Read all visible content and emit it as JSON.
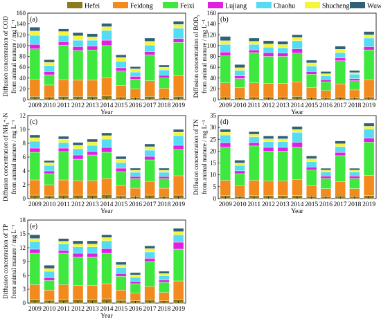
{
  "legend": [
    "Hefei",
    "Feidong",
    "Feixi",
    "Lujiang",
    "Chaohu",
    "Shucheng",
    "Wuwei"
  ],
  "colors": [
    "#8c7a1e",
    "#f28a1e",
    "#3fe83f",
    "#e020e0",
    "#55dcf5",
    "#f5f53a",
    "#2f6277"
  ],
  "years": [
    "2009",
    "2010",
    "2011",
    "2012",
    "2013",
    "2014",
    "2015",
    "2016",
    "2017",
    "2018",
    "2019"
  ],
  "chart_data": [
    {
      "type": "bar",
      "stacked": true,
      "panel": "(a)",
      "ylabel": "Diffusion concentration of COD",
      "ylabel2": "from animal manure / mg L⁻¹",
      "xlabel": "Year",
      "ylim": [
        0,
        160
      ],
      "yticks": [
        0,
        20,
        40,
        60,
        80,
        100,
        120,
        140,
        160
      ],
      "series": [
        {
          "name": "Hefei",
          "values": [
            6,
            5,
            6,
            6,
            6,
            7,
            5,
            4,
            6,
            4,
            6
          ]
        },
        {
          "name": "Feidong",
          "values": [
            32,
            22,
            31,
            30,
            30,
            33,
            21,
            16,
            29,
            17,
            38
          ]
        },
        {
          "name": "Feixi",
          "values": [
            56,
            19,
            64,
            55,
            56,
            60,
            27,
            18,
            48,
            19,
            62
          ]
        },
        {
          "name": "Lujiang",
          "values": [
            8,
            6,
            6,
            7,
            7,
            10,
            6,
            5,
            6,
            5,
            7
          ]
        },
        {
          "name": "Chaohu",
          "values": [
            17,
            11,
            12,
            12,
            11,
            18,
            12,
            8,
            12,
            10,
            19
          ]
        },
        {
          "name": "Shucheng",
          "values": [
            8,
            6,
            7,
            8,
            6,
            7,
            7,
            6,
            7,
            5,
            7
          ]
        },
        {
          "name": "Wuwei",
          "values": [
            7,
            5,
            5,
            6,
            6,
            6,
            5,
            4,
            6,
            4,
            6
          ]
        }
      ]
    },
    {
      "type": "bar",
      "stacked": true,
      "panel": "(b)",
      "ylabel": "Diffusion concentration of BOD₅",
      "ylabel2": "from animal manure / mg L⁻¹",
      "xlabel": "Year",
      "ylim": [
        0,
        160
      ],
      "yticks": [
        0,
        20,
        40,
        60,
        80,
        100,
        120,
        140,
        160
      ],
      "series": [
        {
          "name": "Hefei",
          "values": [
            5,
            4,
            5,
            5,
            5,
            6,
            4,
            3,
            5,
            3,
            5
          ]
        },
        {
          "name": "Feidong",
          "values": [
            26,
            18,
            26,
            25,
            25,
            27,
            18,
            14,
            24,
            15,
            32
          ]
        },
        {
          "name": "Feixi",
          "values": [
            50,
            17,
            56,
            50,
            50,
            53,
            25,
            16,
            43,
            17,
            55
          ]
        },
        {
          "name": "Lujiang",
          "values": [
            7,
            5,
            5,
            7,
            6,
            8,
            5,
            4,
            5,
            4,
            6
          ]
        },
        {
          "name": "Chaohu",
          "values": [
            14,
            10,
            10,
            10,
            10,
            15,
            10,
            7,
            10,
            8,
            16
          ]
        },
        {
          "name": "Shucheng",
          "values": [
            7,
            5,
            6,
            6,
            6,
            6,
            6,
            4,
            6,
            3,
            6
          ]
        },
        {
          "name": "Wuwei",
          "values": [
            8,
            6,
            6,
            6,
            6,
            5,
            5,
            4,
            6,
            4,
            6
          ]
        }
      ]
    },
    {
      "type": "bar",
      "stacked": true,
      "panel": "(c)",
      "ylabel": "Diffusion concentration of NH₃⁺-N",
      "ylabel2": "from animal manure / mg L⁻¹",
      "xlabel": "Year",
      "ylim": [
        0,
        12
      ],
      "yticks": [
        0,
        2,
        4,
        6,
        8,
        10,
        12
      ],
      "series": [
        {
          "name": "Hefei",
          "values": [
            0.5,
            0.4,
            0.5,
            0.5,
            0.5,
            0.6,
            0.4,
            0.3,
            0.5,
            0.3,
            0.5
          ]
        },
        {
          "name": "Feidong",
          "values": [
            2.2,
            1.6,
            2.2,
            2.1,
            2.1,
            2.3,
            1.5,
            1.2,
            2.0,
            1.2,
            2.8
          ]
        },
        {
          "name": "Feixi",
          "values": [
            4.0,
            1.6,
            4.1,
            3.1,
            3.7,
            3.8,
            2.0,
            1.4,
            3.1,
            1.4,
            3.8
          ]
        },
        {
          "name": "Lujiang",
          "values": [
            0.6,
            0.4,
            0.5,
            0.6,
            0.5,
            0.7,
            0.5,
            0.3,
            0.5,
            0.3,
            0.6
          ]
        },
        {
          "name": "Chaohu",
          "values": [
            1.0,
            0.8,
            0.8,
            0.9,
            0.9,
            1.2,
            0.8,
            0.6,
            0.9,
            0.6,
            1.4
          ]
        },
        {
          "name": "Shucheng",
          "values": [
            0.5,
            0.4,
            0.5,
            0.5,
            0.5,
            0.5,
            0.5,
            0.3,
            0.5,
            0.3,
            0.5
          ]
        },
        {
          "name": "Wuwei",
          "values": [
            0.4,
            0.3,
            0.4,
            0.4,
            0.4,
            0.4,
            0.4,
            0.3,
            0.4,
            0.3,
            0.4
          ]
        }
      ]
    },
    {
      "type": "bar",
      "stacked": true,
      "panel": "(d)",
      "ylabel": "Diffusion concentration of TN",
      "ylabel2": "from animal manure / mg L⁻¹",
      "xlabel": "Year",
      "ylim": [
        0,
        35
      ],
      "yticks": [
        0,
        5,
        10,
        15,
        20,
        25,
        30,
        35
      ],
      "series": [
        {
          "name": "Hefei",
          "values": [
            1.2,
            1.0,
            1.2,
            1.2,
            1.2,
            1.3,
            1.0,
            0.8,
            1.1,
            0.8,
            1.3
          ]
        },
        {
          "name": "Feidong",
          "values": [
            6.5,
            4.5,
            6.5,
            6.3,
            6.3,
            6.8,
            4.4,
            3.4,
            6.0,
            3.4,
            8.5
          ]
        },
        {
          "name": "Feixi",
          "values": [
            14.0,
            5.0,
            14.5,
            12.5,
            12.5,
            13.5,
            6.6,
            4.3,
            11.0,
            4.3,
            14.0
          ]
        },
        {
          "name": "Lujiang",
          "values": [
            1.8,
            1.2,
            1.4,
            1.6,
            1.6,
            2.1,
            1.3,
            1.0,
            1.4,
            1.0,
            1.7
          ]
        },
        {
          "name": "Chaohu",
          "values": [
            3.3,
            2.3,
            2.4,
            2.4,
            2.4,
            4.2,
            2.3,
            1.7,
            2.4,
            1.7,
            3.8
          ]
        },
        {
          "name": "Shucheng",
          "values": [
            1.2,
            1.0,
            1.1,
            1.2,
            1.2,
            1.2,
            1.2,
            0.8,
            1.2,
            0.8,
            1.2
          ]
        },
        {
          "name": "Wuwei",
          "values": [
            1.2,
            1.2,
            1.1,
            1.2,
            1.2,
            1.3,
            1.2,
            0.8,
            1.2,
            0.8,
            1.3
          ]
        }
      ]
    },
    {
      "type": "bar",
      "stacked": true,
      "panel": "(e)",
      "ylabel": "Diffusion concentration of TP",
      "ylabel2": "from animal manure / mg L⁻¹",
      "xlabel": "Year",
      "ylim": [
        0,
        18
      ],
      "yticks": [
        0,
        3,
        6,
        9,
        12,
        15,
        18
      ],
      "series": [
        {
          "name": "Hefei",
          "values": [
            0.8,
            0.6,
            0.8,
            0.8,
            0.8,
            0.9,
            0.6,
            0.5,
            0.7,
            0.5,
            0.8
          ]
        },
        {
          "name": "Feidong",
          "values": [
            3.2,
            2.2,
            3.2,
            3.0,
            3.0,
            3.3,
            2.2,
            1.7,
            2.9,
            1.8,
            4.0
          ]
        },
        {
          "name": "Feixi",
          "values": [
            6.8,
            2.1,
            6.8,
            6.2,
            6.2,
            6.6,
            3.0,
            2.0,
            5.4,
            2.2,
            6.9
          ]
        },
        {
          "name": "Lujiang",
          "values": [
            0.9,
            0.6,
            0.6,
            0.8,
            0.8,
            1.0,
            0.6,
            0.5,
            0.7,
            0.5,
            1.5
          ]
        },
        {
          "name": "Chaohu",
          "values": [
            1.6,
            1.4,
            1.4,
            1.4,
            1.4,
            1.7,
            1.3,
            0.9,
            1.4,
            0.9,
            1.6
          ]
        },
        {
          "name": "Shucheng",
          "values": [
            0.7,
            0.6,
            0.6,
            0.6,
            0.6,
            0.7,
            0.6,
            0.5,
            0.7,
            0.5,
            0.7
          ]
        },
        {
          "name": "Wuwei",
          "values": [
            0.8,
            0.7,
            0.6,
            0.7,
            0.7,
            0.6,
            0.6,
            0.5,
            0.6,
            0.5,
            0.7
          ]
        }
      ]
    }
  ]
}
